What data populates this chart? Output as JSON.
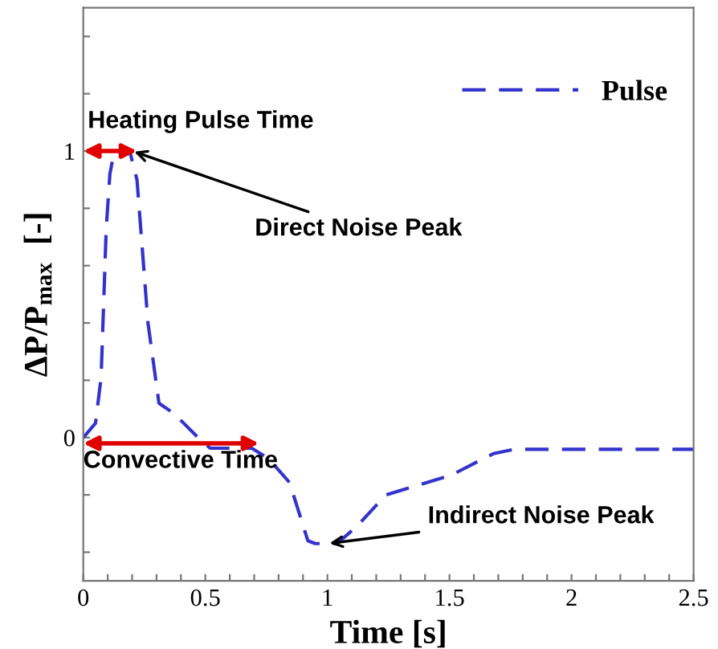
{
  "chart_data": {
    "type": "line",
    "xlabel": "Time [s]",
    "ylabel": "ΔP/P$_{max}$  [-]",
    "x": [
      0,
      0.05,
      0.073,
      0.094,
      0.109,
      0.127,
      0.19,
      0.22,
      0.265,
      0.31,
      0.373,
      0.47,
      0.52,
      0.69,
      0.76,
      0.845,
      0.92,
      0.95,
      1.04,
      1.12,
      1.24,
      1.51,
      1.68,
      1.765,
      2.5
    ],
    "series": [
      {
        "name": "Pulse",
        "color": "#3333cc",
        "values": [
          0,
          0.05,
          0.21,
          0.73,
          0.92,
          1,
          1,
          0.9,
          0.4,
          0.12,
          0.083,
          0,
          -0.037,
          -0.037,
          -0.074,
          -0.157,
          -0.36,
          -0.37,
          -0.37,
          -0.31,
          -0.2,
          -0.13,
          -0.056,
          -0.041,
          -0.041
        ]
      }
    ],
    "line_style": "dashed",
    "legend": "top right",
    "grid": false,
    "xlim": [
      0,
      2.5
    ],
    "xticks": [
      0,
      {
        "value": 0.1,
        "label": null
      },
      {
        "value": 0.2,
        "label": null
      },
      {
        "value": 0.3,
        "label": null
      },
      {
        "value": 0.4,
        "label": null
      },
      0.5,
      {
        "value": 0.6,
        "label": null
      },
      {
        "value": 0.7,
        "label": null
      },
      {
        "value": 0.8,
        "label": null
      },
      {
        "value": 0.9,
        "label": null
      },
      1,
      {
        "value": 1.1,
        "label": null
      },
      {
        "value": 1.2,
        "label": null
      },
      {
        "value": 1.3,
        "label": null
      },
      {
        "value": 1.4,
        "label": null
      },
      1.5,
      {
        "value": 1.6,
        "label": null
      },
      {
        "value": 1.7,
        "label": null
      },
      {
        "value": 1.8,
        "label": null
      },
      {
        "value": 1.9,
        "label": null
      },
      2,
      {
        "value": 2.1,
        "label": null
      },
      {
        "value": 2.2,
        "label": null
      },
      {
        "value": 2.3,
        "label": null
      },
      {
        "value": 2.4,
        "label": null
      },
      2.5
    ],
    "ylim": [
      -0.5,
      1.5
    ],
    "yticks": [
      {
        "value": -0.4,
        "label": null
      },
      {
        "value": -0.2,
        "label": null
      },
      0,
      {
        "value": 0.2,
        "label": null
      },
      {
        "value": 0.4,
        "label": null
      },
      {
        "value": 0.6,
        "label": null
      },
      {
        "value": 0.8,
        "label": null
      },
      1,
      {
        "value": 1.2,
        "label": null
      },
      {
        "value": 1.4,
        "label": null
      }
    ],
    "annotations": [
      {
        "text": "Heating Pulse Time",
        "x": 0.22,
        "y": 1
      },
      {
        "text": "Convective Time",
        "x": 0.72,
        "y": -0.02
      },
      {
        "text": "Direct Noise Peak",
        "x": 0.2,
        "y": 1
      },
      {
        "text": "Indirect Noise Peak",
        "x": 1.0,
        "y": -0.37
      }
    ]
  }
}
